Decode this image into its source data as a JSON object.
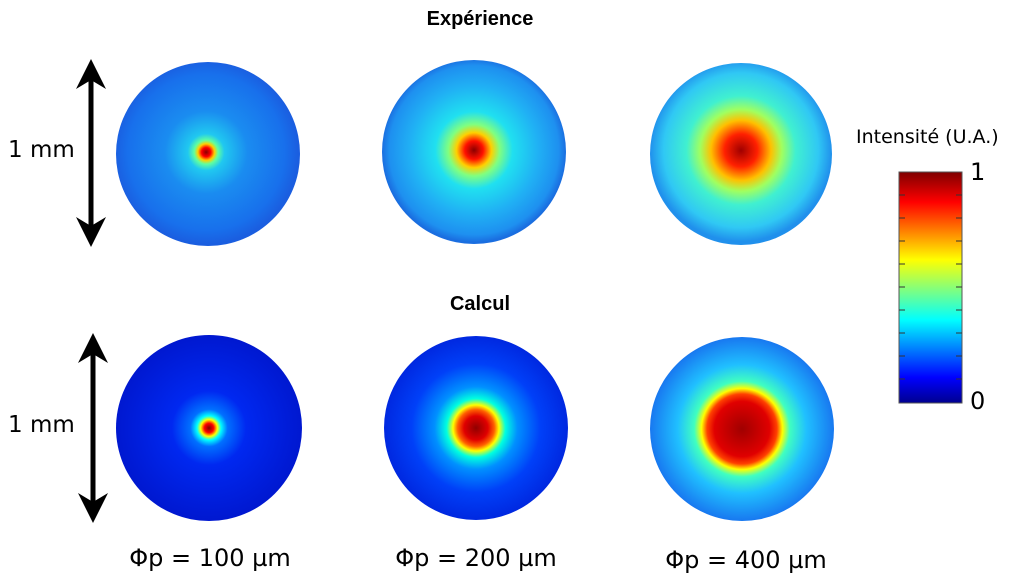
{
  "titles": {
    "experiment": "Expérience",
    "calculation": "Calcul"
  },
  "scale": {
    "top_label": "1 mm",
    "bottom_label": "1 mm"
  },
  "captions": [
    "Φp = 100 µm",
    "Φp = 200 µm",
    "Φp = 400 µm"
  ],
  "colorbar": {
    "title": "Intensité (U.A.)",
    "max_label": "1",
    "min_label": "0"
  },
  "colors": {
    "jet_dark_red": "#7f0000",
    "jet_red": "#ff0000",
    "jet_yellow": "#ffff00",
    "jet_cyan": "#00ffff",
    "jet_blue": "#0000ff",
    "jet_dark_blue": "#00008f"
  },
  "icons": [
    "double-headed-arrow-icon",
    "double-headed-arrow-icon"
  ]
}
